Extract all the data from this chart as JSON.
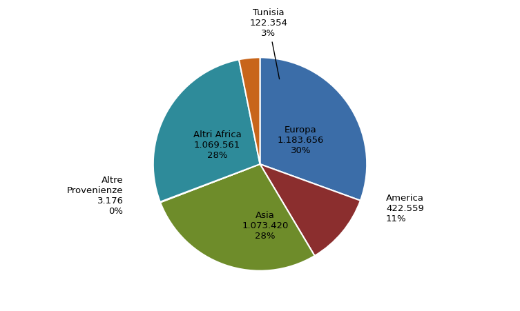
{
  "labels": [
    "Europa",
    "America",
    "Asia",
    "Altre\nProvenienze",
    "Altri Africa",
    "Tunisia"
  ],
  "values": [
    1183656,
    422559,
    1073420,
    3176,
    1069561,
    122354
  ],
  "display_values": [
    "1.183.656",
    "422.559",
    "1.073.420",
    "3.176",
    "1.069.561",
    "122.354"
  ],
  "percentages": [
    "30%",
    "11%",
    "28%",
    "0%",
    "28%",
    "3%"
  ],
  "colors": [
    "#3b6da8",
    "#8b2e2e",
    "#6e8c2a",
    "#d8d8d8",
    "#2e8b9a",
    "#c8651a"
  ],
  "background_color": "#ffffff",
  "startangle": 90,
  "explode": [
    0,
    0,
    0,
    0.12,
    0,
    0
  ],
  "figsize": [
    7.53,
    4.51
  ],
  "dpi": 100
}
